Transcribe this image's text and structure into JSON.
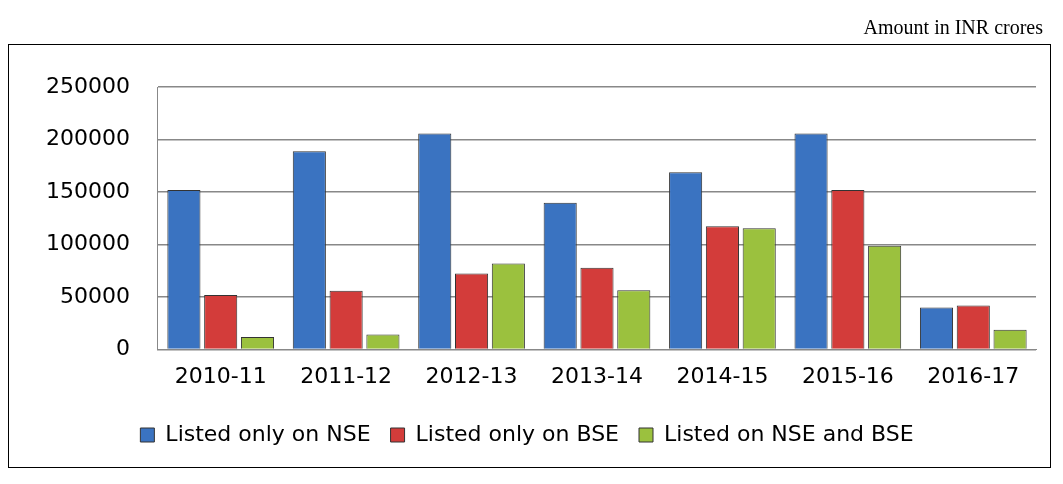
{
  "chart_data": {
    "type": "bar",
    "annotations": [
      "Amount in INR crores"
    ],
    "categories": [
      "2010-11",
      "2011-12",
      "2012-13",
      "2013-14",
      "2014-15",
      "2015-16",
      "2016-17"
    ],
    "series": [
      {
        "name": "Listed only on NSE",
        "color": "#3a73c1",
        "values": [
          152000,
          189000,
          206000,
          140000,
          169000,
          206000,
          40000
        ]
      },
      {
        "name": "Listed only on BSE",
        "color": "#d33c3a",
        "values": [
          52000,
          56000,
          72500,
          78000,
          117500,
          152000,
          42000
        ]
      },
      {
        "name": "Listed on NSE and BSE",
        "color": "#9bc13e",
        "values": [
          12000,
          14500,
          82000,
          56500,
          115500,
          99000,
          19000
        ]
      }
    ],
    "ylim": [
      0,
      250000
    ],
    "yticks": [
      0,
      50000,
      100000,
      150000,
      200000,
      250000
    ],
    "grid": "y",
    "legend": "bottom"
  }
}
